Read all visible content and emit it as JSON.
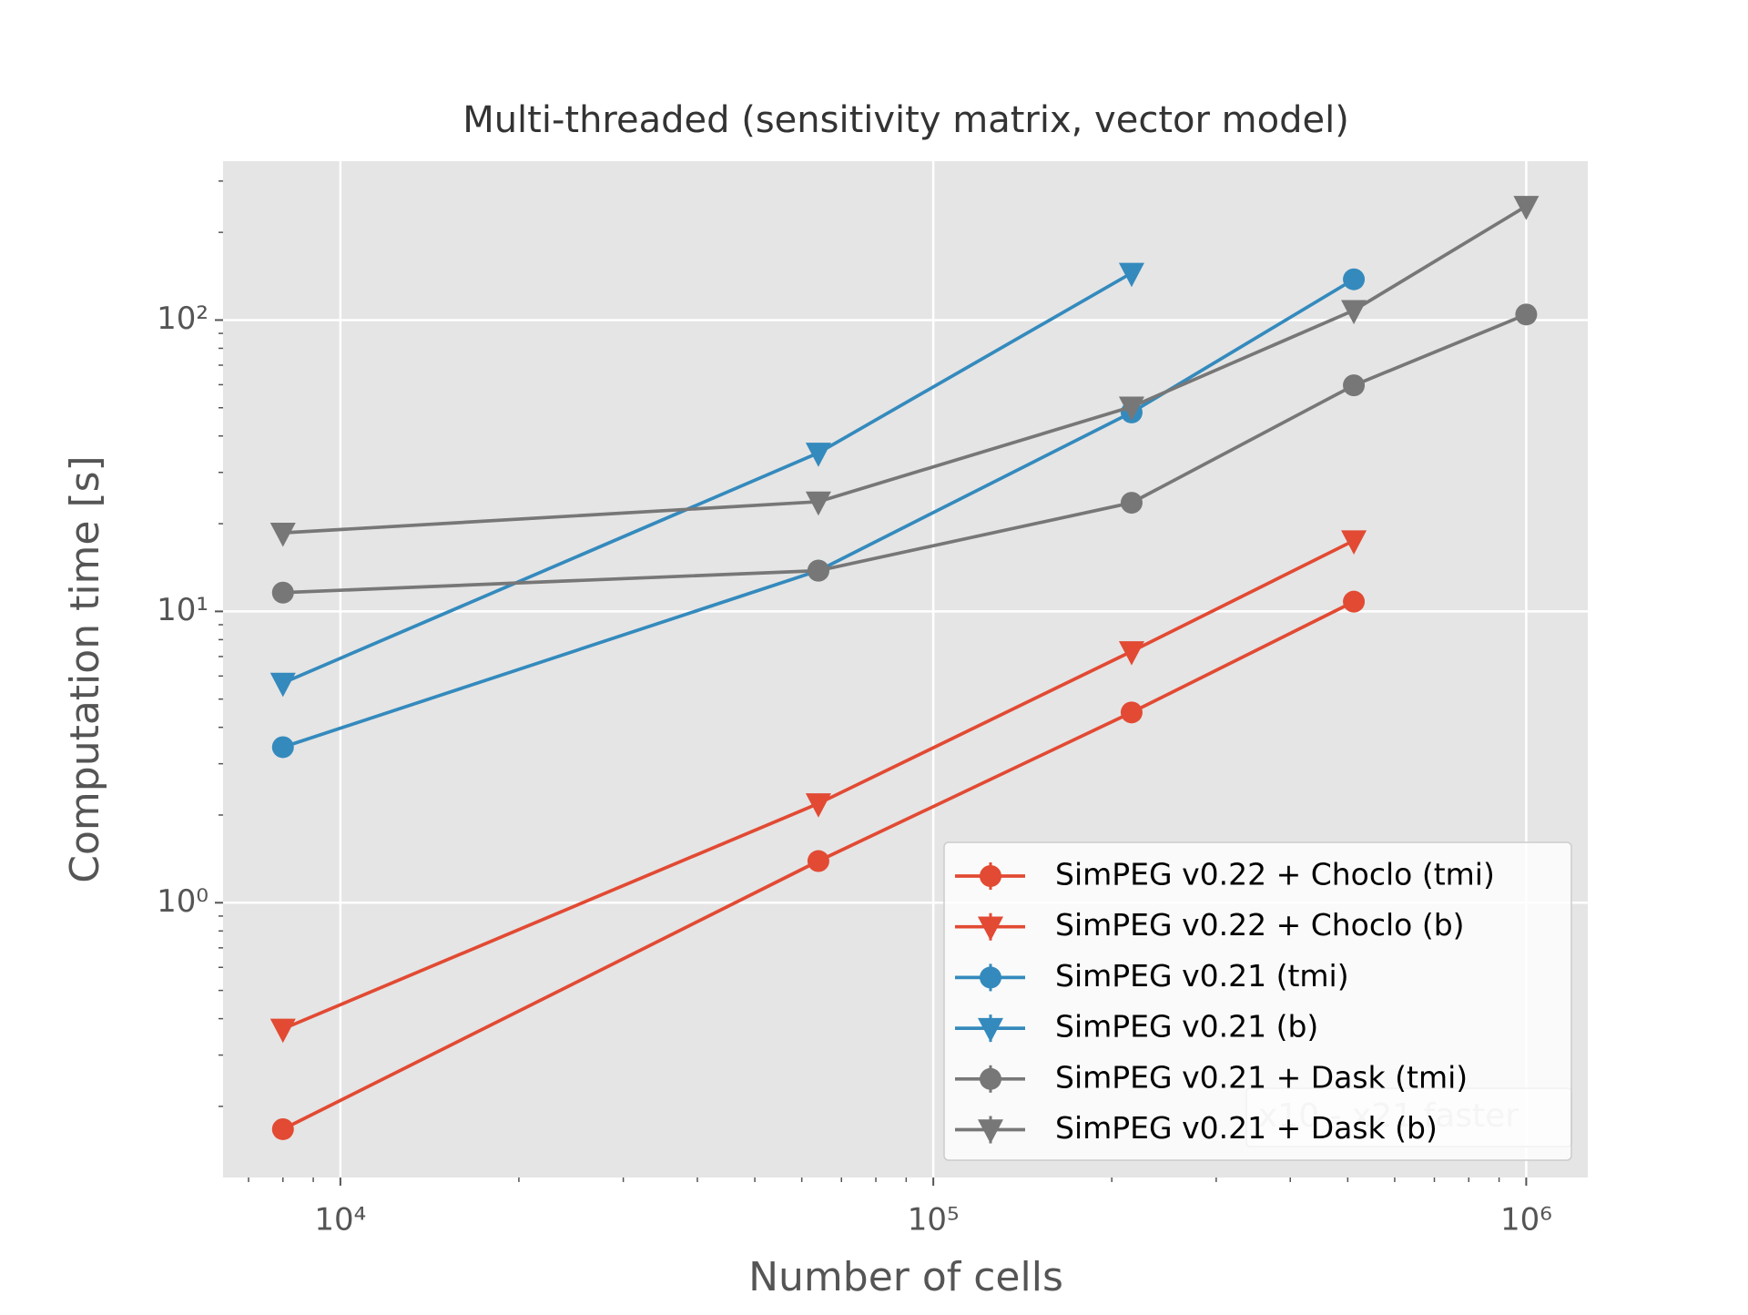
{
  "chart_data": {
    "type": "line",
    "title": "Multi-threaded (sensitivity matrix, vector model)",
    "xlabel": "Number of cells",
    "ylabel": "Computation time [s]",
    "x": [
      8000,
      64000,
      216000,
      512000,
      1000000
    ],
    "series": [
      {
        "name": "SimPEG v0.22 + Choclo (tmi)",
        "color": "#E24A33",
        "marker": "circle",
        "values": [
          0.167,
          1.39,
          4.5,
          10.8,
          null
        ]
      },
      {
        "name": "SimPEG v0.22 + Choclo (b)",
        "color": "#E24A33",
        "marker": "triangle-down",
        "values": [
          0.369,
          2.19,
          7.29,
          17.5,
          null
        ]
      },
      {
        "name": "SimPEG v0.21 (tmi)",
        "color": "#348ABD",
        "marker": "circle",
        "values": [
          3.42,
          13.8,
          48.2,
          138,
          null
        ]
      },
      {
        "name": "SimPEG v0.21 (b)",
        "color": "#348ABD",
        "marker": "triangle-down",
        "values": [
          5.68,
          35,
          145,
          null,
          null
        ]
      },
      {
        "name": "SimPEG v0.21 + Dask (tmi)",
        "color": "#777777",
        "marker": "circle",
        "values": [
          11.6,
          13.8,
          23.6,
          59.7,
          104.5
        ]
      },
      {
        "name": "SimPEG v0.21 + Dask (b)",
        "color": "#777777",
        "marker": "triangle-down",
        "values": [
          18.6,
          23.8,
          50.4,
          108,
          246
        ]
      }
    ],
    "annotation": "x10 - x21 faster",
    "xscale": "log",
    "yscale": "log",
    "xlim": [
      6340,
      1270000
    ],
    "ylim": [
      0.114,
      351
    ],
    "xticks": [
      {
        "value": 10000,
        "label": "10⁴"
      },
      {
        "value": 100000,
        "label": "10⁵"
      },
      {
        "value": 1000000,
        "label": "10⁶"
      }
    ],
    "yticks": [
      {
        "value": 1,
        "label": "10⁰"
      },
      {
        "value": 10,
        "label": "10¹"
      },
      {
        "value": 100,
        "label": "10²"
      }
    ],
    "xminor_ticks": [
      7000,
      8000,
      9000,
      20000,
      30000,
      40000,
      50000,
      60000,
      70000,
      80000,
      90000,
      200000,
      300000,
      400000,
      500000,
      600000,
      700000,
      800000,
      900000
    ],
    "yminor_ticks": [
      0.2,
      0.3,
      0.4,
      0.5,
      0.6,
      0.7,
      0.8,
      0.9,
      2,
      3,
      4,
      5,
      6,
      7,
      8,
      9,
      20,
      30,
      40,
      50,
      60,
      70,
      80,
      90,
      200,
      300
    ],
    "grid": true,
    "legend": "lower right",
    "background": "#E5E5E5"
  }
}
